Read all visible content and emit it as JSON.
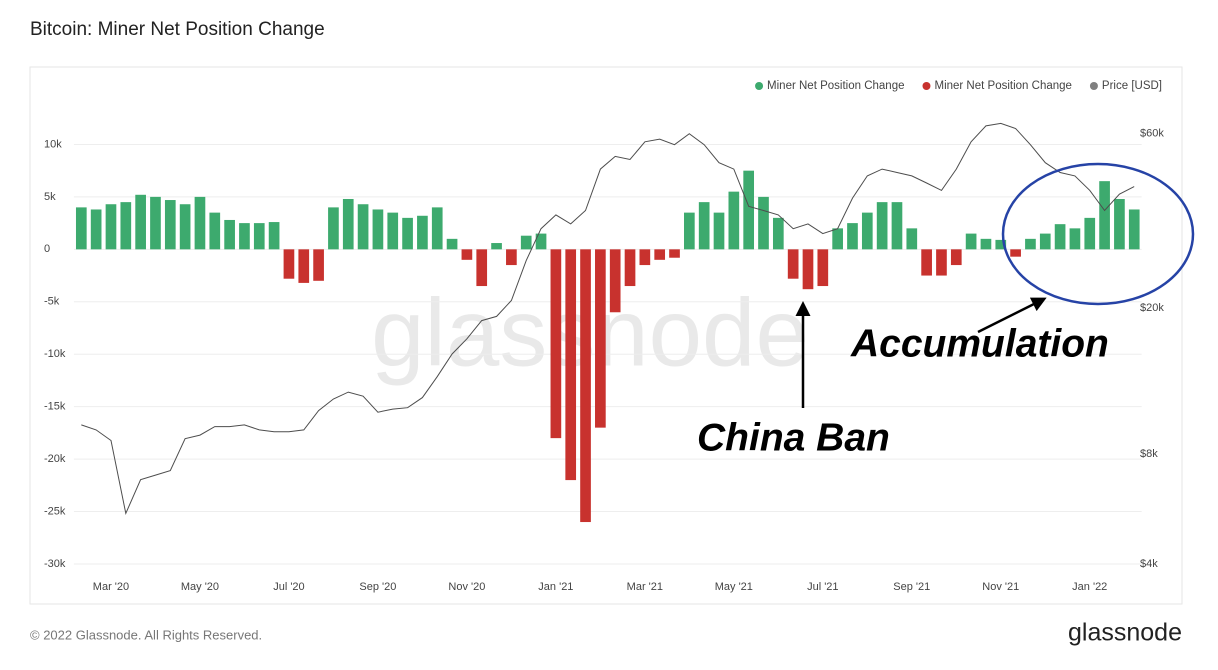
{
  "chart_data": {
    "type": "bar",
    "title": "Bitcoin: Miner Net Position Change",
    "categories": [
      null,
      null,
      "Mar '20",
      null,
      null,
      null,
      null,
      null,
      "May '20",
      null,
      null,
      null,
      null,
      null,
      "Jul '20",
      null,
      null,
      null,
      null,
      null,
      "Sep '20",
      null,
      null,
      null,
      null,
      null,
      "Nov '20",
      null,
      null,
      null,
      null,
      null,
      "Jan '21",
      null,
      null,
      null,
      null,
      null,
      "Mar '21",
      null,
      null,
      null,
      null,
      null,
      "May '21",
      null,
      null,
      null,
      null,
      null,
      "Jul '21",
      null,
      null,
      null,
      null,
      null,
      "Sep '21",
      null,
      null,
      null,
      null,
      null,
      "Nov '21",
      null,
      null,
      null,
      null,
      null,
      "Jan '22",
      null,
      null,
      null
    ],
    "series": [
      {
        "name": "Miner Net Position Change",
        "color": "#3daa6e",
        "values": [
          4000,
          3800,
          4300,
          4500,
          5200,
          5000,
          4700,
          4300,
          5000,
          3500,
          2800,
          2500,
          2500,
          2600,
          null,
          null,
          null,
          4000,
          4800,
          4300,
          3800,
          3500,
          3000,
          3200,
          4000,
          1000,
          null,
          null,
          600,
          null,
          1300,
          1500,
          null,
          null,
          null,
          null,
          null,
          null,
          null,
          null,
          null,
          3500,
          4500,
          3500,
          5500,
          7500,
          5000,
          3000,
          null,
          null,
          null,
          2000,
          2500,
          3500,
          4500,
          4500,
          2000,
          null,
          null,
          null,
          1500,
          1000,
          900,
          null,
          1000,
          1500,
          2400,
          2000,
          3000,
          6500,
          4800,
          3800
        ]
      },
      {
        "name": "Miner Net Position Change",
        "color": "#c8322e",
        "values": [
          null,
          null,
          null,
          null,
          null,
          null,
          null,
          null,
          null,
          null,
          null,
          null,
          null,
          null,
          -2800,
          -3200,
          -3000,
          null,
          null,
          null,
          null,
          null,
          null,
          null,
          null,
          null,
          -1000,
          -3500,
          null,
          -1500,
          null,
          null,
          -18000,
          -22000,
          -26000,
          -17000,
          -6000,
          -3500,
          -1500,
          -1000,
          -800,
          null,
          null,
          null,
          null,
          null,
          null,
          null,
          -2800,
          -3800,
          -3500,
          null,
          null,
          null,
          null,
          null,
          null,
          -2500,
          -2500,
          -1500,
          null,
          null,
          null,
          -700,
          null,
          null,
          null,
          null,
          null,
          null,
          null,
          null
        ]
      },
      {
        "name": "Price [USD]",
        "color": "#808080",
        "line_color": "#4d4d4d",
        "axis": "y2",
        "values": [
          9600,
          9300,
          8700,
          5500,
          6800,
          7000,
          7200,
          8800,
          9000,
          9500,
          9500,
          9600,
          9300,
          9200,
          9200,
          9300,
          10500,
          11300,
          11800,
          11500,
          10400,
          10600,
          10700,
          11400,
          13000,
          15000,
          16500,
          18500,
          19000,
          21000,
          27000,
          33000,
          36000,
          34000,
          37000,
          48000,
          52000,
          51000,
          57000,
          58000,
          56000,
          60000,
          56000,
          50000,
          48000,
          38000,
          37000,
          36000,
          33000,
          34000,
          32000,
          33000,
          40000,
          46000,
          48000,
          47000,
          46000,
          44000,
          42000,
          48000,
          57000,
          63000,
          64000,
          62000,
          56000,
          50000,
          47000,
          46000,
          42000,
          37000,
          41000,
          43000
        ]
      }
    ],
    "ylim": [
      -30000,
      15000
    ],
    "yticks": [
      {
        "value": -30000,
        "label": "-30k"
      },
      {
        "value": -25000,
        "label": "-25k"
      },
      {
        "value": -20000,
        "label": "-20k"
      },
      {
        "value": -15000,
        "label": "-15k"
      },
      {
        "value": -10000,
        "label": "-10k"
      },
      {
        "value": -5000,
        "label": "-5k"
      },
      0,
      {
        "value": 5000,
        "label": "5k"
      },
      {
        "value": 10000,
        "label": "10k"
      }
    ],
    "y2lim": [
      4000,
      78000
    ],
    "y2ticks": [
      {
        "value": 4000,
        "label": "$4k"
      },
      {
        "value": 8000,
        "label": "$8k"
      },
      {
        "value": 20000,
        "label": "$20k"
      },
      {
        "value": 60000,
        "label": "$60k"
      }
    ],
    "y2_log": true,
    "grid": true,
    "legend": "top-right",
    "annotations": [
      "China Ban",
      "Accumulation"
    ],
    "watermark": "glassnode",
    "copyright": "© 2022 Glassnode. All Rights Reserved.",
    "brand": "glassnode"
  }
}
